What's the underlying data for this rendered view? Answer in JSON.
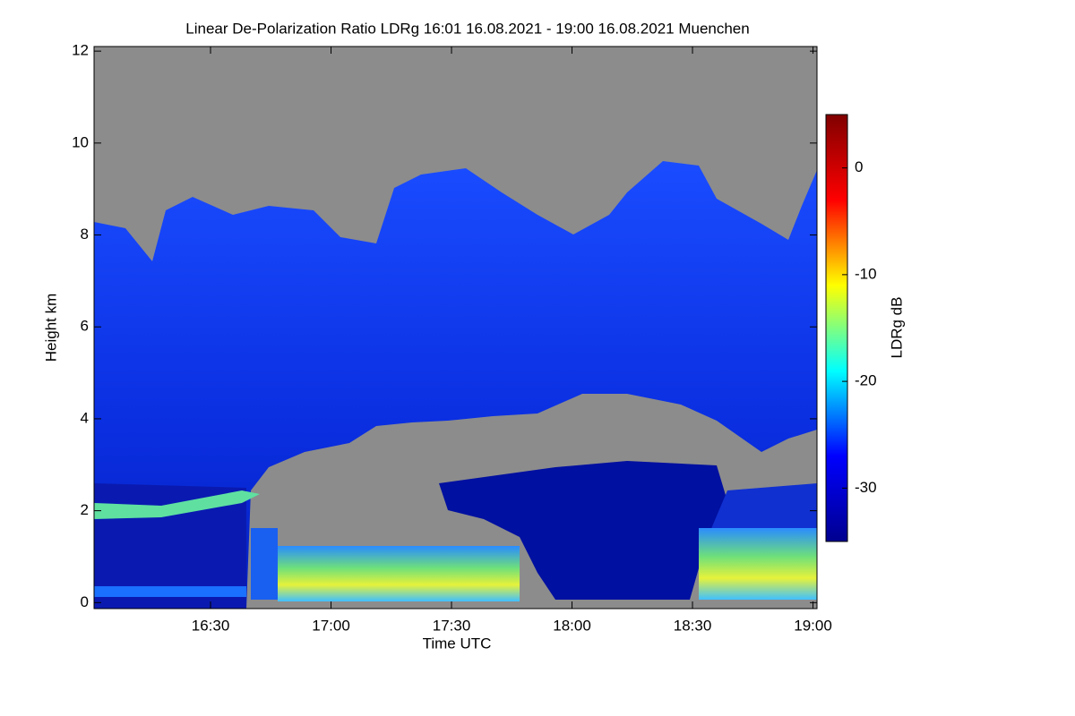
{
  "chart_data": {
    "type": "heatmap",
    "title": "Linear De-Polarization Ratio LDRg   16:01 16.08.2021 - 19:00 16.08.2021 Muenchen",
    "xlabel": "Time UTC",
    "ylabel": "Height km",
    "colorbar_label": "LDRg dB",
    "xlim": [
      961,
      1141
    ],
    "xticks": [
      {
        "value": 990,
        "label": "16:30"
      },
      {
        "value": 1020,
        "label": "17:00"
      },
      {
        "value": 1050,
        "label": "17:30"
      },
      {
        "value": 1080,
        "label": "18:00"
      },
      {
        "value": 1110,
        "label": "18:30"
      },
      {
        "value": 1140,
        "label": "19:00"
      }
    ],
    "ylim": [
      -0.13,
      12.1
    ],
    "yticks": [
      0,
      2,
      4,
      6,
      8,
      10,
      12
    ],
    "clim": [
      -35,
      5
    ],
    "cticks": [
      0,
      -10,
      -20,
      -30
    ],
    "colormap": [
      "#00008f",
      "#0000ff",
      "#00ffff",
      "#ffff00",
      "#ff0000",
      "#800000"
    ]
  }
}
